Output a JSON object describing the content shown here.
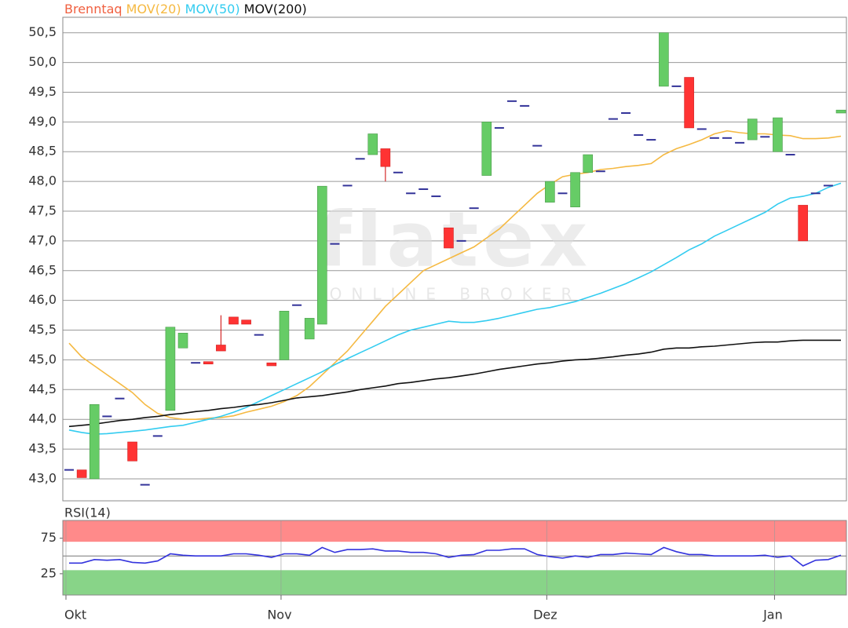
{
  "chart_data": [
    {
      "type": "candlestick",
      "title": "Brenntaq",
      "title_color": "#f06040",
      "watermark": "flatex",
      "watermark_sub": "ONLINE BROKER",
      "categories": [
        "Okt",
        null,
        null,
        null,
        null,
        null,
        null,
        null,
        null,
        null,
        null,
        null,
        null,
        null,
        null,
        null,
        null,
        "Nov",
        null,
        null,
        null,
        null,
        null,
        null,
        null,
        null,
        null,
        null,
        null,
        null,
        null,
        null,
        null,
        null,
        null,
        null,
        null,
        null,
        "Dez",
        null,
        null,
        null,
        null,
        null,
        null,
        null,
        null,
        null,
        null,
        null,
        null,
        null,
        null,
        null,
        null,
        null,
        "Jan",
        null,
        null,
        null,
        null,
        null
      ],
      "open": [
        43.15,
        43.15,
        43.0,
        44.05,
        44.35,
        43.62,
        42.9,
        43.72,
        44.15,
        45.2,
        44.95,
        44.97,
        45.25,
        45.72,
        45.67,
        45.42,
        44.95,
        45.0,
        45.92,
        45.35,
        45.6,
        46.95,
        47.93,
        48.38,
        48.45,
        48.55,
        48.15,
        47.8,
        47.87,
        47.75,
        47.22,
        47.0,
        47.55,
        48.1,
        48.9,
        49.35,
        49.27,
        48.6,
        47.65,
        47.8,
        47.57,
        48.15,
        48.17,
        49.05,
        49.15,
        48.78,
        48.7,
        49.6,
        49.6,
        49.75,
        48.88,
        48.73,
        48.73,
        48.65,
        48.7,
        48.75,
        48.5,
        48.45,
        47.6,
        47.8,
        47.93,
        49.15
      ],
      "close": [
        43.15,
        43.02,
        44.25,
        44.05,
        44.35,
        43.3,
        42.9,
        43.72,
        45.55,
        45.45,
        44.95,
        44.93,
        45.15,
        45.6,
        45.6,
        45.42,
        44.9,
        45.82,
        45.92,
        45.7,
        47.92,
        46.95,
        47.93,
        48.38,
        48.8,
        48.25,
        48.15,
        47.8,
        47.87,
        47.75,
        46.88,
        47.0,
        47.55,
        49.0,
        48.9,
        49.35,
        49.27,
        48.6,
        48.0,
        47.8,
        48.15,
        48.45,
        48.17,
        49.05,
        49.15,
        48.78,
        48.7,
        50.5,
        49.6,
        48.9,
        48.88,
        48.73,
        48.73,
        48.65,
        49.05,
        48.75,
        49.07,
        48.45,
        47.0,
        47.8,
        47.93,
        49.2
      ],
      "high": [
        null,
        null,
        null,
        null,
        null,
        null,
        null,
        null,
        null,
        null,
        null,
        null,
        45.75,
        null,
        null,
        null,
        null,
        null,
        null,
        null,
        null,
        null,
        null,
        null,
        null,
        null,
        null,
        null,
        null,
        null,
        null,
        null,
        null,
        null,
        null,
        null,
        null,
        null,
        null,
        null,
        null,
        null,
        null,
        null,
        null,
        null,
        null,
        null,
        null,
        null,
        null,
        null,
        null,
        null,
        null,
        null,
        null,
        null,
        null,
        null,
        null,
        null
      ],
      "low": [
        null,
        null,
        null,
        null,
        null,
        null,
        null,
        null,
        null,
        null,
        null,
        null,
        null,
        null,
        null,
        null,
        null,
        null,
        null,
        null,
        null,
        null,
        null,
        null,
        null,
        48.0,
        null,
        null,
        null,
        null,
        null,
        null,
        null,
        null,
        null,
        null,
        null,
        null,
        null,
        null,
        null,
        null,
        null,
        null,
        null,
        null,
        null,
        null,
        null,
        null,
        null,
        null,
        null,
        null,
        null,
        null,
        null,
        null,
        null,
        null,
        null,
        null
      ],
      "up_color": "#66cc66",
      "down_color": "#ff3333",
      "flat_color": "#333399",
      "series": [
        {
          "name": "MOV(20)",
          "color": "#f5b942",
          "values": [
            45.28,
            45.05,
            44.9,
            44.75,
            44.6,
            44.45,
            44.25,
            44.1,
            44.03,
            44.0,
            44.0,
            44.02,
            44.03,
            44.06,
            44.12,
            44.17,
            44.22,
            44.3,
            44.4,
            44.55,
            44.75,
            44.95,
            45.15,
            45.4,
            45.65,
            45.9,
            46.1,
            46.3,
            46.5,
            46.6,
            46.7,
            46.8,
            46.9,
            47.05,
            47.2,
            47.4,
            47.6,
            47.8,
            47.95,
            48.08,
            48.12,
            48.15,
            48.2,
            48.22,
            48.25,
            48.27,
            48.3,
            48.45,
            48.55,
            48.62,
            48.7,
            48.8,
            48.85,
            48.82,
            48.8,
            48.8,
            48.78,
            48.77,
            48.72,
            48.72,
            48.73,
            48.76
          ]
        },
        {
          "name": "MOV(50)",
          "color": "#33ccf0",
          "values": [
            43.82,
            43.78,
            43.75,
            43.76,
            43.78,
            43.8,
            43.82,
            43.85,
            43.88,
            43.9,
            43.95,
            44.0,
            44.05,
            44.12,
            44.2,
            44.3,
            44.4,
            44.5,
            44.6,
            44.7,
            44.8,
            44.92,
            45.02,
            45.12,
            45.22,
            45.32,
            45.42,
            45.5,
            45.55,
            45.6,
            45.65,
            45.63,
            45.63,
            45.66,
            45.7,
            45.75,
            45.8,
            45.85,
            45.88,
            45.93,
            45.98,
            46.05,
            46.12,
            46.2,
            46.28,
            46.38,
            46.48,
            46.6,
            46.72,
            46.85,
            46.95,
            47.08,
            47.18,
            47.28,
            47.38,
            47.48,
            47.62,
            47.72,
            47.75,
            47.8,
            47.9,
            47.97
          ]
        },
        {
          "name": "MOV(200)",
          "color": "#111111",
          "values": [
            43.88,
            43.9,
            43.92,
            43.95,
            43.98,
            44.0,
            44.03,
            44.05,
            44.08,
            44.1,
            44.13,
            44.15,
            44.18,
            44.2,
            44.23,
            44.25,
            44.28,
            44.32,
            44.36,
            44.38,
            44.4,
            44.43,
            44.46,
            44.5,
            44.53,
            44.56,
            44.6,
            44.62,
            44.65,
            44.68,
            44.7,
            44.73,
            44.76,
            44.8,
            44.84,
            44.87,
            44.9,
            44.93,
            44.95,
            44.98,
            45.0,
            45.01,
            45.03,
            45.05,
            45.08,
            45.1,
            45.13,
            45.18,
            45.2,
            45.2,
            45.22,
            45.23,
            45.25,
            45.27,
            45.29,
            45.3,
            45.3,
            45.32,
            45.33,
            45.33,
            45.33,
            45.33
          ]
        }
      ],
      "ylim": [
        42.63,
        50.76
      ],
      "yticks": [
        {
          "value": 43,
          "label": "43,0"
        },
        {
          "value": 43.5,
          "label": "43,5"
        },
        {
          "value": 44,
          "label": "44,0"
        },
        {
          "value": 44.5,
          "label": "44,5"
        },
        {
          "value": 45,
          "label": "45,0"
        },
        {
          "value": 45.5,
          "label": "45,5"
        },
        {
          "value": 46,
          "label": "46,0"
        },
        {
          "value": 46.5,
          "label": "46,5"
        },
        {
          "value": 47,
          "label": "47,0"
        },
        {
          "value": 47.5,
          "label": "47,5"
        },
        {
          "value": 48,
          "label": "48,0"
        },
        {
          "value": 48.5,
          "label": "48,5"
        },
        {
          "value": 49,
          "label": "49,0"
        },
        {
          "value": 49.5,
          "label": "49,5"
        },
        {
          "value": 50,
          "label": "50,0"
        },
        {
          "value": 50.5,
          "label": "50,5"
        }
      ],
      "grid": true
    },
    {
      "type": "line",
      "series": [
        {
          "name": "RSI(14)",
          "color": "#3333dd",
          "values": [
            40,
            40,
            45,
            44,
            45,
            41,
            40,
            43,
            53,
            51,
            50,
            50,
            50,
            53,
            53,
            51,
            48,
            53,
            53,
            51,
            62,
            55,
            59,
            59,
            60,
            57,
            57,
            55,
            55,
            53,
            48,
            51,
            52,
            58,
            58,
            60,
            60,
            52,
            49,
            47,
            50,
            48,
            52,
            52,
            54,
            53,
            52,
            62,
            56,
            52,
            52,
            50,
            50,
            50,
            50,
            51,
            48,
            50,
            36,
            44,
            45,
            51
          ]
        }
      ],
      "ylim": [
        -5,
        100
      ],
      "yticks": [
        25,
        75
      ],
      "bands": [
        {
          "from": 70,
          "to": 100,
          "color": "#ff8a8a"
        },
        {
          "from": -5,
          "to": 30,
          "color": "#88d488"
        }
      ],
      "guides": [
        50
      ]
    }
  ]
}
